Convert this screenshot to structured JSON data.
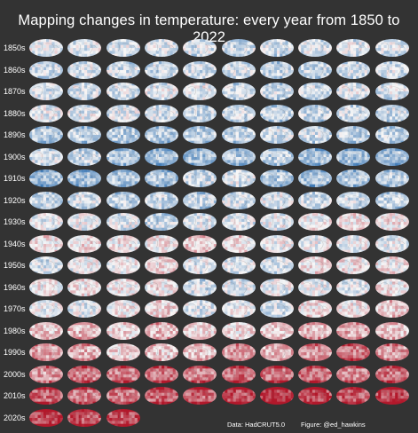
{
  "title": "Mapping changes in temperature: every year from 1850 to 2022",
  "decades": [
    {
      "label": "1850s",
      "anomaly": [
        -0.1,
        -0.12,
        -0.15,
        -0.14,
        -0.18,
        -0.2,
        -0.18,
        -0.16,
        -0.14,
        -0.16
      ]
    },
    {
      "label": "1860s",
      "anomaly": [
        -0.18,
        -0.16,
        -0.2,
        -0.22,
        -0.18,
        -0.2,
        -0.24,
        -0.22,
        -0.2,
        -0.18
      ]
    },
    {
      "label": "1870s",
      "anomaly": [
        -0.14,
        -0.16,
        -0.18,
        -0.1,
        -0.08,
        -0.2,
        -0.22,
        -0.18,
        -0.12,
        -0.16
      ]
    },
    {
      "label": "1880s",
      "anomaly": [
        -0.1,
        -0.12,
        -0.14,
        -0.2,
        -0.24,
        -0.22,
        -0.26,
        -0.24,
        -0.22,
        -0.2
      ]
    },
    {
      "label": "1890s",
      "anomaly": [
        -0.34,
        -0.3,
        -0.32,
        -0.36,
        -0.3,
        -0.28,
        -0.2,
        -0.22,
        -0.3,
        -0.28
      ]
    },
    {
      "label": "1900s",
      "anomaly": [
        -0.18,
        -0.24,
        -0.34,
        -0.4,
        -0.44,
        -0.36,
        -0.3,
        -0.42,
        -0.44,
        -0.42
      ]
    },
    {
      "label": "1910s",
      "anomaly": [
        -0.44,
        -0.46,
        -0.38,
        -0.4,
        -0.2,
        -0.16,
        -0.36,
        -0.44,
        -0.34,
        -0.3
      ]
    },
    {
      "label": "1920s",
      "anomaly": [
        -0.26,
        -0.18,
        -0.28,
        -0.22,
        -0.26,
        -0.18,
        -0.1,
        -0.2,
        -0.18,
        -0.3
      ]
    },
    {
      "label": "1930s",
      "anomaly": [
        -0.08,
        -0.06,
        -0.1,
        -0.24,
        -0.1,
        -0.14,
        -0.1,
        0.02,
        0.08,
        0.06
      ]
    },
    {
      "label": "1940s",
      "anomaly": [
        0.1,
        0.12,
        0.06,
        0.08,
        0.22,
        0.1,
        -0.04,
        -0.02,
        -0.06,
        -0.08
      ]
    },
    {
      "label": "1950s",
      "anomaly": [
        -0.16,
        -0.02,
        0.02,
        0.1,
        -0.1,
        -0.14,
        -0.2,
        0.08,
        0.1,
        0.06
      ]
    },
    {
      "label": "1960s",
      "anomaly": [
        0.02,
        0.06,
        0.04,
        0.06,
        -0.2,
        -0.1,
        -0.06,
        -0.04,
        -0.08,
        0.06
      ]
    },
    {
      "label": "1970s",
      "anomaly": [
        -0.04,
        -0.1,
        0.04,
        0.14,
        -0.14,
        -0.04,
        -0.16,
        0.14,
        0.06,
        0.2
      ]
    },
    {
      "label": "1980s",
      "anomaly": [
        0.26,
        0.32,
        0.14,
        0.34,
        0.16,
        0.12,
        0.18,
        0.34,
        0.4,
        0.28
      ]
    },
    {
      "label": "1990s",
      "anomaly": [
        0.44,
        0.4,
        0.18,
        0.22,
        0.28,
        0.46,
        0.34,
        0.52,
        0.66,
        0.48
      ]
    },
    {
      "label": "2000s",
      "anomaly": [
        0.48,
        0.62,
        0.66,
        0.66,
        0.6,
        0.74,
        0.7,
        0.7,
        0.58,
        0.7
      ]
    },
    {
      "label": "2010s",
      "anomaly": [
        0.78,
        0.64,
        0.68,
        0.74,
        0.78,
        0.9,
        1.0,
        0.92,
        0.84,
        0.94
      ]
    },
    {
      "label": "2020s",
      "anomaly": [
        0.98,
        0.84,
        0.88
      ]
    }
  ],
  "credits": {
    "data": "Data: HadCRUT5.0",
    "figure": "Figure: @ed_hawkins"
  },
  "colors": {
    "cold": "#2166ac",
    "neutral": "#f7f7f7",
    "warm": "#b2182b",
    "background": "#333333"
  }
}
